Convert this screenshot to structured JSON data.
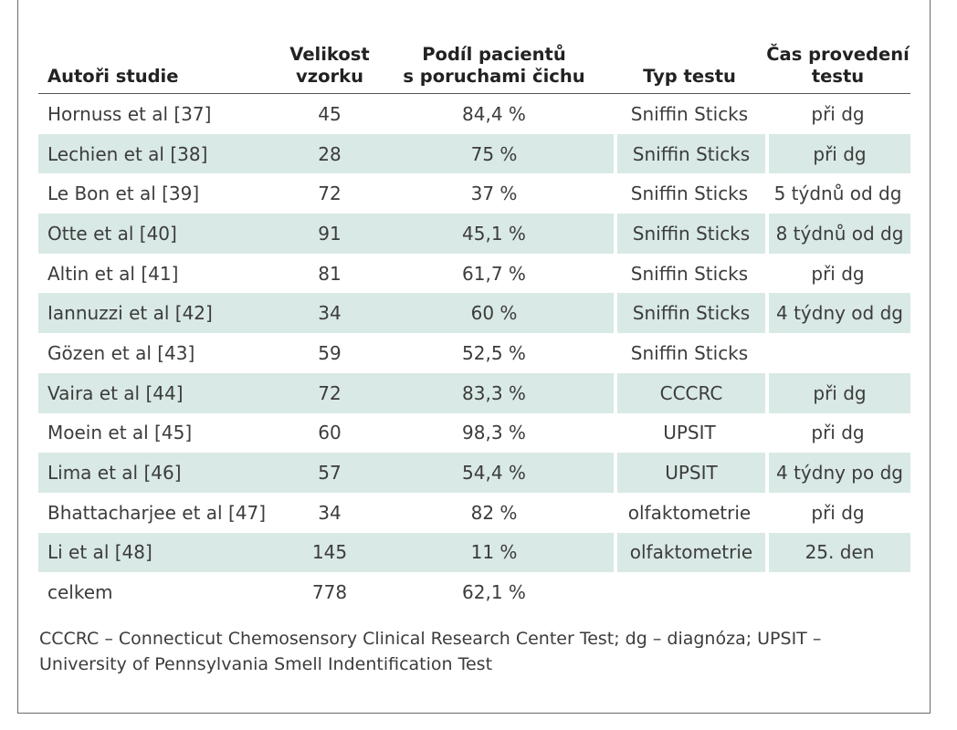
{
  "table": {
    "headers": {
      "authors": "Autoři studie",
      "sample_size_line1": "Velikost",
      "sample_size_line2": "vzorku",
      "share_line1": "Podíl pacientů",
      "share_line2": "s poruchami čichu",
      "test_type": "Typ testu",
      "time_line1": "Čas provedení",
      "time_line2": "testu"
    },
    "rows": [
      {
        "authors": "Hornuss et al [37]",
        "size": "45",
        "share": "84,4 %",
        "type": "Sniffin Sticks",
        "time": "při dg"
      },
      {
        "authors": "Lechien et al [38]",
        "size": "28",
        "share": "75 %",
        "type": "Sniffin Sticks",
        "time": "při dg"
      },
      {
        "authors": "Le Bon et al [39]",
        "size": "72",
        "share": "37 %",
        "type": "Sniffin Sticks",
        "time": "5 týdnů od dg"
      },
      {
        "authors": "Otte et al [40]",
        "size": "91",
        "share": "45,1 %",
        "type": "Sniffin Sticks",
        "time": "8 týdnů od dg"
      },
      {
        "authors": "Altin et al [41]",
        "size": "81",
        "share": "61,7 %",
        "type": "Sniffin Sticks",
        "time": "při dg"
      },
      {
        "authors": "Iannuzzi et al [42]",
        "size": "34",
        "share": "60 %",
        "type": "Sniffin Sticks",
        "time": "4 týdny od dg"
      },
      {
        "authors": "Gözen et al [43]",
        "size": "59",
        "share": "52,5 %",
        "type": "Sniffin Sticks",
        "time": ""
      },
      {
        "authors": "Vaira et al [44]",
        "size": "72",
        "share": "83,3 %",
        "type": "CCCRC",
        "time": "při dg"
      },
      {
        "authors": "Moein et al [45]",
        "size": "60",
        "share": "98,3 %",
        "type": "UPSIT",
        "time": "při dg"
      },
      {
        "authors": "Lima et al [46]",
        "size": "57",
        "share": "54,4 %",
        "type": "UPSIT",
        "time": "4 týdny po dg"
      },
      {
        "authors": "Bhattacharjee et al [47]",
        "size": "34",
        "share": "82 %",
        "type": "olfaktometrie",
        "time": "při dg"
      },
      {
        "authors": "Li et al [48]",
        "size": "145",
        "share": "11 %",
        "type": "olfaktometrie",
        "time": "25. den"
      },
      {
        "authors": "celkem",
        "size": "778",
        "share": "62,1 %",
        "type": "",
        "time": ""
      }
    ]
  },
  "footnote": {
    "line1": "CCCRC – Connecticut Chemosensory Clinical Research Center Test; dg – diagnóza; UPSIT –",
    "line2": "University of Pennsylvania Smell Indentification Test"
  },
  "colors": {
    "row_shade": "#d9e9e5",
    "rule": "#555555"
  }
}
